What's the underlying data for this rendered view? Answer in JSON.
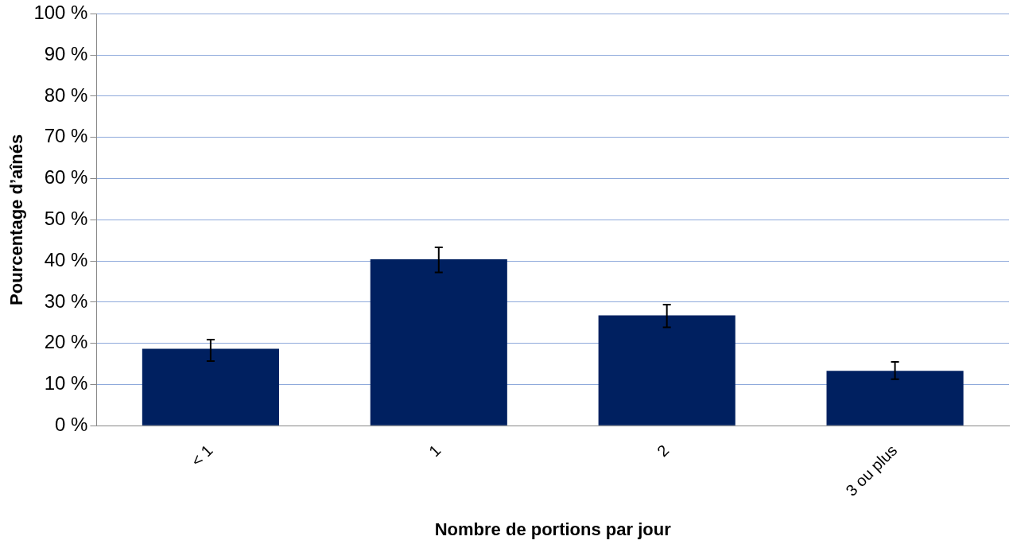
{
  "chart_data": {
    "type": "bar",
    "xlabel": "Nombre de portions par jour",
    "ylabel": "Pourcentage d’aînés",
    "categories": [
      "< 1",
      "1",
      "2",
      "3 ou plus"
    ],
    "values": [
      18.7,
      40.4,
      26.8,
      13.3
    ],
    "errors": [
      [
        15.7,
        20.9
      ],
      [
        37.2,
        43.3
      ],
      [
        23.9,
        29.4
      ],
      [
        11.3,
        15.5
      ]
    ],
    "color": "#002060",
    "ylim": [
      0,
      100
    ],
    "yticks": [
      {
        "value": 0,
        "label": "0 %"
      },
      {
        "value": 10,
        "label": "10 %"
      },
      {
        "value": 20,
        "label": "20 %"
      },
      {
        "value": 30,
        "label": "30 %"
      },
      {
        "value": 40,
        "label": "40 %"
      },
      {
        "value": 50,
        "label": "50 %"
      },
      {
        "value": 60,
        "label": "60 %"
      },
      {
        "value": 70,
        "label": "70 %"
      },
      {
        "value": 80,
        "label": "80 %"
      },
      {
        "value": 90,
        "label": "90 %"
      },
      {
        "value": 100,
        "label": "100 %"
      }
    ],
    "grid": "y",
    "legend": false
  }
}
